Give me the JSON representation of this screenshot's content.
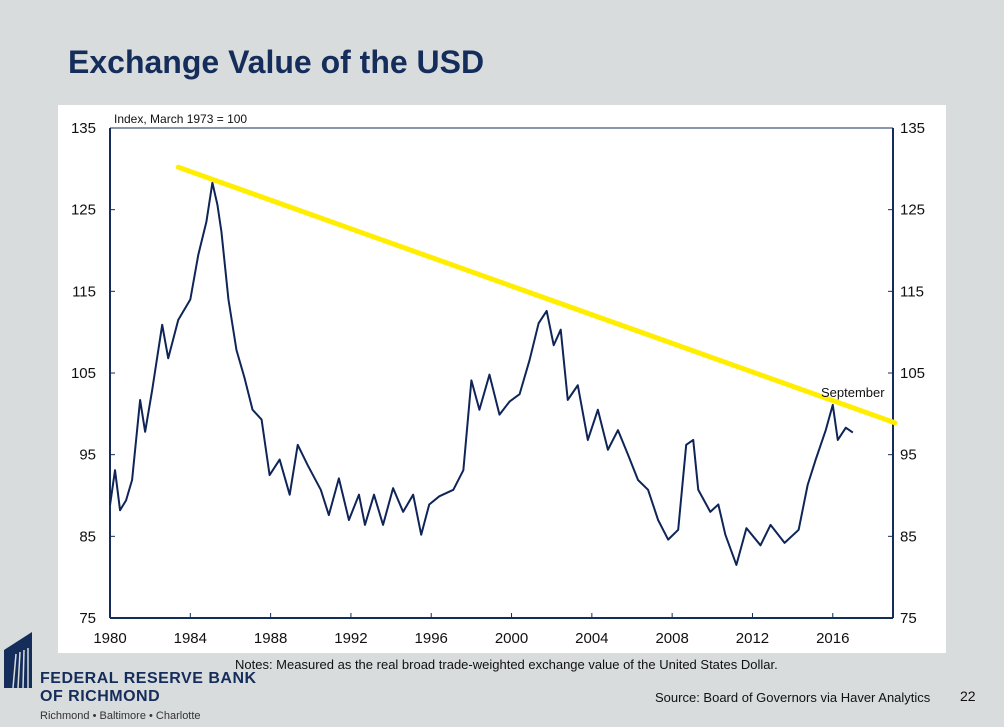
{
  "title": "Exchange Value of the USD",
  "notes": "Notes: Measured as the real broad trade-weighted exchange value of the United States Dollar.",
  "source": "Source: Board of Governors via Haver Analytics",
  "page_number": "22",
  "logo": {
    "line1": "FEDERAL RESERVE BANK",
    "line2": "OF RICHMOND",
    "line3": "Richmond • Baltimore • Charlotte"
  },
  "chart_data": {
    "type": "line",
    "title": "",
    "ylabel": "Index, March 1973 = 100",
    "xlabel": "",
    "xlim": [
      1980,
      2019
    ],
    "ylim": [
      75,
      135
    ],
    "xticks": [
      1980,
      1984,
      1988,
      1992,
      1996,
      2000,
      2004,
      2008,
      2012,
      2016
    ],
    "yticks": [
      75,
      85,
      95,
      105,
      115,
      125,
      135
    ],
    "grid": false,
    "annotation": "September",
    "colors": {
      "series": "#0f2557",
      "trend": "#ffee00"
    },
    "series": [
      {
        "x": [
          1980.0,
          1980.25,
          1980.5,
          1980.8,
          1981.1,
          1981.5,
          1981.75,
          1982.1,
          1982.6,
          1982.9,
          1983.4,
          1984.0,
          1984.4,
          1984.8,
          1985.1,
          1985.35,
          1985.55,
          1985.9,
          1986.3,
          1986.7,
          1987.1,
          1987.55,
          1987.95,
          1988.45,
          1988.95,
          1989.35,
          1989.85,
          1990.5,
          1990.9,
          1991.4,
          1991.9,
          1992.4,
          1992.7,
          1993.15,
          1993.6,
          1994.1,
          1994.6,
          1995.1,
          1995.5,
          1995.9,
          1996.4,
          1997.1,
          1997.6,
          1998.0,
          1998.4,
          1998.9,
          1999.4,
          1999.9,
          2000.4,
          2000.9,
          2001.35,
          2001.75,
          2002.1,
          2002.45,
          2002.8,
          2003.3,
          2003.8,
          2004.3,
          2004.8,
          2005.3,
          2005.8,
          2006.3,
          2006.8,
          2007.3,
          2007.8,
          2008.3,
          2008.7,
          2009.05,
          2009.3,
          2009.9,
          2010.3,
          2010.65,
          2011.2,
          2011.7,
          2012.4,
          2012.9,
          2013.6,
          2014.3,
          2014.75,
          2015.15,
          2015.65,
          2016.0,
          2016.25,
          2016.65,
          2017.0
        ],
        "y": [
          88.8,
          93.1,
          88.2,
          89.4,
          91.9,
          101.7,
          97.8,
          102.9,
          110.9,
          106.8,
          111.5,
          114.0,
          119.5,
          123.5,
          128.3,
          125.6,
          122.3,
          114.0,
          107.8,
          104.4,
          100.5,
          99.3,
          92.5,
          94.4,
          90.1,
          96.2,
          93.7,
          90.7,
          87.6,
          92.1,
          87.0,
          90.1,
          86.4,
          90.1,
          86.4,
          90.9,
          88.0,
          90.1,
          85.2,
          88.9,
          89.9,
          90.7,
          93.1,
          104.1,
          100.5,
          104.8,
          99.9,
          101.5,
          102.4,
          106.6,
          111.1,
          112.6,
          108.4,
          110.3,
          101.7,
          103.5,
          96.8,
          100.5,
          95.6,
          98.0,
          95.0,
          91.9,
          90.7,
          87.0,
          84.6,
          85.8,
          96.2,
          96.8,
          90.7,
          88.0,
          88.9,
          85.2,
          81.5,
          86.0,
          83.9,
          86.4,
          84.2,
          85.8,
          91.3,
          94.4,
          98.0,
          101.1,
          96.8,
          98.3,
          97.7
        ]
      },
      {
        "x": [
          1983.4,
          2019.1
        ],
        "y": [
          130.2,
          98.9
        ]
      }
    ]
  }
}
